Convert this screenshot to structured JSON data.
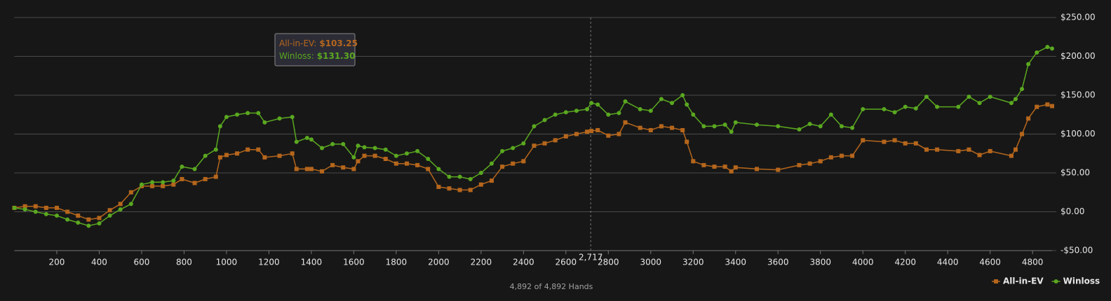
{
  "chart_data": {
    "type": "line",
    "x": [
      0,
      50,
      100,
      150,
      200,
      250,
      300,
      350,
      400,
      450,
      500,
      550,
      600,
      650,
      700,
      750,
      790,
      850,
      900,
      950,
      970,
      1000,
      1050,
      1100,
      1150,
      1180,
      1250,
      1310,
      1330,
      1380,
      1400,
      1450,
      1500,
      1550,
      1600,
      1620,
      1650,
      1700,
      1750,
      1800,
      1850,
      1900,
      1950,
      2000,
      2050,
      2100,
      2150,
      2200,
      2250,
      2300,
      2350,
      2400,
      2450,
      2500,
      2550,
      2600,
      2650,
      2700,
      2720,
      2750,
      2800,
      2850,
      2880,
      2950,
      3000,
      3050,
      3100,
      3150,
      3170,
      3200,
      3250,
      3300,
      3350,
      3380,
      3400,
      3500,
      3600,
      3700,
      3750,
      3800,
      3850,
      3900,
      3950,
      4000,
      4100,
      4150,
      4200,
      4250,
      4300,
      4350,
      4450,
      4500,
      4550,
      4600,
      4700,
      4720,
      4750,
      4780,
      4820,
      4870,
      4892
    ],
    "series": [
      {
        "name": "All-in-EV",
        "color": "#b5661c",
        "marker": "square",
        "values": [
          5,
          7,
          7,
          5,
          5,
          0,
          -5,
          -10,
          -8,
          2,
          10,
          25,
          33,
          33,
          33,
          35,
          42,
          37,
          42,
          45,
          70,
          73,
          75,
          80,
          80,
          70,
          72,
          75,
          55,
          55,
          55,
          52,
          60,
          57,
          55,
          65,
          72,
          72,
          68,
          62,
          62,
          60,
          55,
          32,
          30,
          28,
          28,
          35,
          40,
          58,
          62,
          65,
          85,
          88,
          92,
          97,
          100,
          103,
          104,
          105,
          98,
          100,
          115,
          108,
          105,
          110,
          108,
          105,
          90,
          65,
          60,
          58,
          58,
          52,
          57,
          55,
          54,
          60,
          62,
          65,
          70,
          72,
          72,
          92,
          90,
          92,
          88,
          88,
          80,
          80,
          78,
          80,
          73,
          78,
          72,
          80,
          100,
          120,
          135,
          138,
          136
        ]
      },
      {
        "name": "Winloss",
        "color": "#5aa820",
        "marker": "circle",
        "values": [
          5,
          3,
          0,
          -3,
          -5,
          -10,
          -14,
          -18,
          -15,
          -5,
          3,
          10,
          35,
          38,
          38,
          40,
          58,
          55,
          72,
          80,
          110,
          122,
          125,
          127,
          127,
          115,
          120,
          122,
          90,
          95,
          93,
          82,
          87,
          87,
          70,
          85,
          83,
          82,
          80,
          72,
          75,
          78,
          68,
          55,
          45,
          45,
          42,
          50,
          62,
          78,
          82,
          88,
          110,
          118,
          125,
          128,
          130,
          132,
          140,
          138,
          125,
          127,
          142,
          132,
          130,
          145,
          140,
          150,
          138,
          125,
          110,
          110,
          112,
          103,
          115,
          112,
          110,
          106,
          113,
          110,
          125,
          110,
          108,
          132,
          132,
          128,
          135,
          133,
          148,
          135,
          135,
          148,
          140,
          148,
          140,
          145,
          158,
          190,
          205,
          212,
          210
        ]
      }
    ],
    "xlim": [
      0,
      4892
    ],
    "ylim": [
      -50,
      250
    ],
    "xticks": [
      200,
      400,
      600,
      800,
      1000,
      1200,
      1400,
      1600,
      1800,
      2000,
      2200,
      2400,
      2600,
      2800,
      3000,
      3200,
      3400,
      3600,
      3800,
      4000,
      4200,
      4400,
      4600,
      4800
    ],
    "yticks": [
      {
        "value": -50,
        "label": "-$50.00"
      },
      {
        "value": 0,
        "label": "$0.00"
      },
      {
        "value": 50,
        "label": "$50.00"
      },
      {
        "value": 100,
        "label": "$100.00"
      },
      {
        "value": 150,
        "label": "$150.00"
      },
      {
        "value": 200,
        "label": "$200.00"
      },
      {
        "value": 250,
        "label": "$250.00"
      }
    ],
    "grid": true,
    "legend": "bottom-right",
    "crosshair": {
      "value": 2717,
      "label": "2,717"
    },
    "tooltip": {
      "items": [
        {
          "label": "All-in-EV:",
          "value": 103.25,
          "value_label": "$103.25"
        },
        {
          "label": "Winloss:",
          "value": 131.3,
          "value_label": "$131.30"
        }
      ]
    },
    "footer": "4,892 of 4,892 Hands"
  }
}
